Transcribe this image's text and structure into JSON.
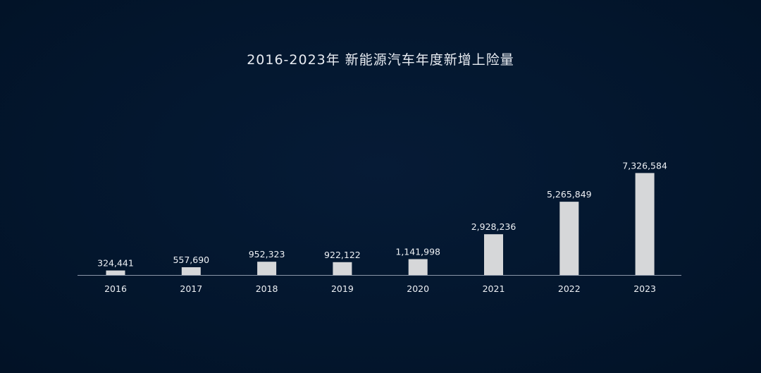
{
  "chart_data": {
    "type": "bar",
    "title": "2016-2023年 新能源汽车年度新增上险量",
    "categories": [
      "2016",
      "2017",
      "2018",
      "2019",
      "2020",
      "2021",
      "2022",
      "2023"
    ],
    "values": [
      324441,
      557690,
      952323,
      922122,
      1141998,
      2928236,
      5265849,
      7326584
    ],
    "value_labels": [
      "324,441",
      "557,690",
      "952,323",
      "922,122",
      "1,141,998",
      "2,928,236",
      "5,265,849",
      "7,326,584"
    ],
    "xlabel": "",
    "ylabel": "",
    "ylim": [
      0,
      7500000
    ],
    "grid": false,
    "legend": "none",
    "colors": {
      "background": "#03162d",
      "bar": "#d6d7d9",
      "text": "#eef1f5",
      "axis": "#8a96a8"
    }
  }
}
